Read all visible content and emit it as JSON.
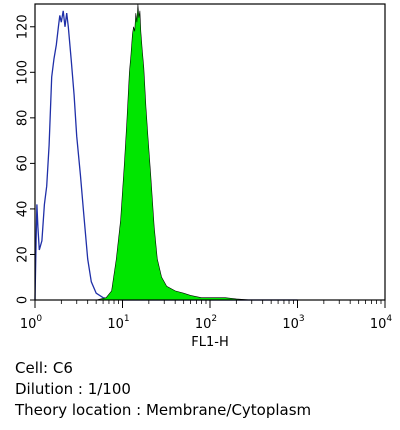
{
  "chart_data": {
    "type": "area",
    "xlabel": "FL1-H",
    "ylabel": "",
    "xscale": "log",
    "xlim": [
      1,
      10000
    ],
    "ylim": [
      0,
      130
    ],
    "x_ticks": [
      {
        "base": "10",
        "exp": "0"
      },
      {
        "base": "10",
        "exp": "1"
      },
      {
        "base": "10",
        "exp": "2"
      },
      {
        "base": "10",
        "exp": "3"
      },
      {
        "base": "10",
        "exp": "4"
      }
    ],
    "y_ticks": [
      0,
      20,
      40,
      60,
      80,
      100,
      120
    ],
    "series": [
      {
        "style": "outline",
        "color": "#1f2fa8",
        "points": [
          [
            1.0,
            0
          ],
          [
            1.03,
            26
          ],
          [
            1.05,
            42
          ],
          [
            1.08,
            32
          ],
          [
            1.12,
            22
          ],
          [
            1.2,
            26
          ],
          [
            1.28,
            42
          ],
          [
            1.36,
            50
          ],
          [
            1.45,
            68
          ],
          [
            1.55,
            98
          ],
          [
            1.65,
            106
          ],
          [
            1.75,
            112
          ],
          [
            1.85,
            120
          ],
          [
            1.92,
            125
          ],
          [
            2.0,
            122
          ],
          [
            2.1,
            127
          ],
          [
            2.2,
            120
          ],
          [
            2.3,
            126
          ],
          [
            2.4,
            120
          ],
          [
            2.6,
            105
          ],
          [
            2.8,
            90
          ],
          [
            3.0,
            72
          ],
          [
            3.3,
            55
          ],
          [
            3.6,
            38
          ],
          [
            4.0,
            18
          ],
          [
            4.4,
            8
          ],
          [
            5.0,
            3
          ],
          [
            6.0,
            1
          ],
          [
            7.0,
            0.5
          ],
          [
            10,
            0
          ],
          [
            15,
            0
          ],
          [
            1000,
            0
          ]
        ]
      },
      {
        "style": "filled",
        "color": "#00e600",
        "points": [
          [
            5.0,
            0
          ],
          [
            6.5,
            1
          ],
          [
            7.5,
            4
          ],
          [
            8.5,
            18
          ],
          [
            9.5,
            35
          ],
          [
            10.5,
            60
          ],
          [
            11.2,
            78
          ],
          [
            12.0,
            100
          ],
          [
            12.5,
            108
          ],
          [
            13.0,
            117
          ],
          [
            13.4,
            120
          ],
          [
            13.8,
            118
          ],
          [
            14.2,
            126
          ],
          [
            14.6,
            122
          ],
          [
            15.0,
            130
          ],
          [
            15.4,
            124
          ],
          [
            15.8,
            127
          ],
          [
            16.2,
            118
          ],
          [
            16.8,
            110
          ],
          [
            17.5,
            102
          ],
          [
            18.5,
            85
          ],
          [
            19.5,
            72
          ],
          [
            21.0,
            55
          ],
          [
            23.0,
            32
          ],
          [
            25.0,
            18
          ],
          [
            28.0,
            10
          ],
          [
            32.0,
            6
          ],
          [
            40.0,
            4
          ],
          [
            50.0,
            3
          ],
          [
            60.0,
            2
          ],
          [
            80.0,
            1
          ],
          [
            100.0,
            1
          ],
          [
            150.0,
            1
          ],
          [
            200.0,
            0.5
          ],
          [
            300.0,
            0
          ]
        ]
      }
    ]
  },
  "caption": {
    "cell": "Cell: C6",
    "dilution": "Dilution : 1/100",
    "location": "Theory location : Membrane/Cytoplasm"
  }
}
